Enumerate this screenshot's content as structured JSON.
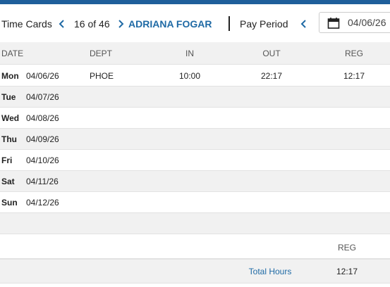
{
  "header": {
    "title": "Time Cards",
    "pager": "16 of 46",
    "employee": "ADRIANA FOGAR",
    "pay_period_label": "Pay Period",
    "date": "04/06/26"
  },
  "table": {
    "columns": [
      "DATE",
      "DEPT",
      "IN",
      "OUT",
      "REG"
    ],
    "rows": [
      {
        "day": "Mon",
        "date": "04/06/26",
        "dept": "PHOE",
        "in": "10:00",
        "out": "22:17",
        "reg": "12:17"
      },
      {
        "day": "Tue",
        "date": "04/07/26"
      },
      {
        "day": "Wed",
        "date": "04/08/26"
      },
      {
        "day": "Thu",
        "date": "04/09/26"
      },
      {
        "day": "Fri",
        "date": "04/10/26"
      },
      {
        "day": "Sat",
        "date": "04/11/26"
      },
      {
        "day": "Sun",
        "date": "04/12/26"
      }
    ]
  },
  "summary": {
    "column": "REG",
    "label": "Total Hours",
    "value": "12:17"
  }
}
